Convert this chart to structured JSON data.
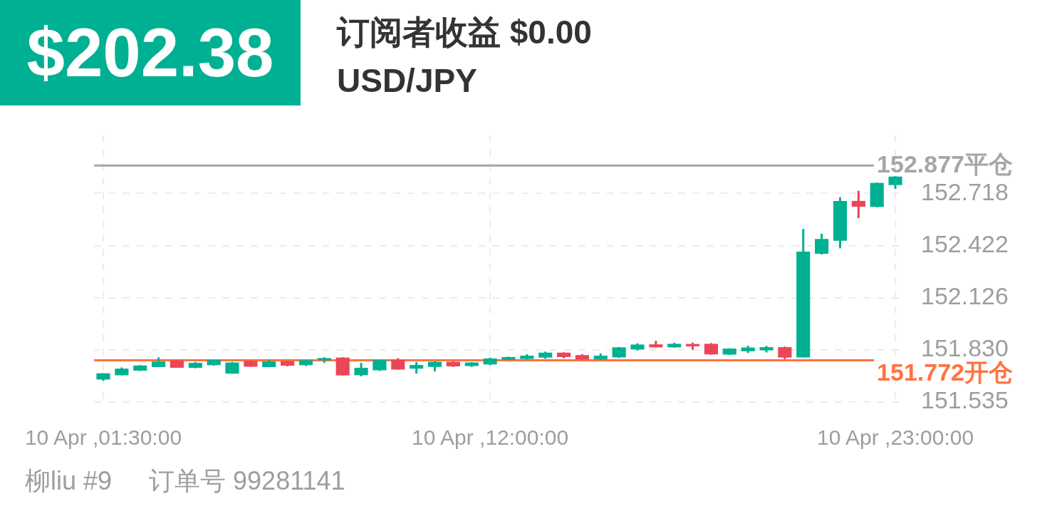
{
  "chart_data": {
    "type": "candlestick",
    "title": "订阅者收益 $0.00",
    "subtitle": "USD/JPY",
    "categories": [
      "10 Apr ,01:30:00",
      null,
      null,
      null,
      null,
      null,
      null,
      null,
      null,
      null,
      null,
      null,
      null,
      null,
      null,
      null,
      null,
      null,
      null,
      null,
      null,
      "10 Apr ,12:00:00",
      null,
      null,
      null,
      null,
      null,
      null,
      null,
      null,
      null,
      null,
      null,
      null,
      null,
      null,
      null,
      null,
      null,
      null,
      null,
      null,
      null,
      "10 Apr ,23:00:00"
    ],
    "ohlc": [
      [
        151.662,
        151.698,
        151.656,
        151.698
      ],
      [
        151.687,
        151.731,
        151.687,
        151.724
      ],
      [
        151.713,
        151.744,
        151.711,
        151.742
      ],
      [
        151.733,
        151.788,
        151.733,
        151.765
      ],
      [
        151.772,
        151.774,
        151.729,
        151.729
      ],
      [
        151.729,
        151.762,
        151.726,
        151.757
      ],
      [
        151.744,
        151.776,
        151.741,
        151.774
      ],
      [
        151.696,
        151.762,
        151.696,
        151.759
      ],
      [
        151.769,
        151.771,
        151.735,
        151.735
      ],
      [
        151.733,
        151.774,
        151.733,
        151.765
      ],
      [
        151.767,
        151.769,
        151.737,
        151.741
      ],
      [
        151.744,
        151.774,
        151.739,
        151.772
      ],
      [
        151.772,
        151.789,
        151.757,
        151.784
      ],
      [
        151.787,
        151.789,
        151.686,
        151.686
      ],
      [
        151.687,
        151.757,
        151.681,
        151.729
      ],
      [
        151.715,
        151.776,
        151.711,
        151.774
      ],
      [
        151.774,
        151.784,
        151.719,
        151.719
      ],
      [
        151.724,
        151.762,
        151.697,
        151.745
      ],
      [
        151.734,
        151.765,
        151.708,
        151.763
      ],
      [
        151.763,
        151.765,
        151.734,
        151.737
      ],
      [
        151.739,
        151.761,
        151.734,
        151.759
      ],
      [
        151.748,
        151.787,
        151.744,
        151.782
      ],
      [
        151.774,
        151.792,
        151.772,
        151.79
      ],
      [
        151.779,
        151.806,
        151.777,
        151.798
      ],
      [
        151.787,
        151.821,
        151.78,
        151.815
      ],
      [
        151.815,
        151.817,
        151.783,
        151.79
      ],
      [
        151.801,
        151.806,
        151.774,
        151.776
      ],
      [
        151.776,
        151.81,
        151.774,
        151.798
      ],
      [
        151.788,
        151.847,
        151.786,
        151.845
      ],
      [
        151.833,
        151.868,
        151.827,
        151.861
      ],
      [
        151.862,
        151.882,
        151.845,
        151.845
      ],
      [
        151.845,
        151.871,
        151.843,
        151.865
      ],
      [
        151.864,
        151.872,
        151.831,
        151.851
      ],
      [
        151.865,
        151.869,
        151.803,
        151.805
      ],
      [
        151.804,
        151.84,
        151.802,
        151.838
      ],
      [
        151.823,
        151.854,
        151.813,
        151.844
      ],
      [
        151.828,
        151.853,
        151.816,
        151.846
      ],
      [
        151.846,
        151.85,
        151.778,
        151.787
      ],
      [
        151.788,
        152.517,
        151.788,
        152.388
      ],
      [
        152.376,
        152.49,
        152.372,
        152.46
      ],
      [
        152.45,
        152.697,
        152.407,
        152.676
      ],
      [
        152.676,
        152.733,
        152.578,
        152.643
      ],
      [
        152.642,
        152.78,
        152.64,
        152.778
      ],
      [
        152.766,
        152.816,
        152.744,
        152.814
      ]
    ],
    "colors": [
      "#00b092",
      "#00b092",
      "#00b092",
      "#00b092",
      "#eb4656",
      "#00b092",
      "#00b092",
      "#00b092",
      "#eb4656",
      "#00b092",
      "#eb4656",
      "#00b092",
      "#00b092",
      "#eb4656",
      "#00b092",
      "#00b092",
      "#eb4656",
      "#00b092",
      "#00b092",
      "#eb4656",
      "#00b092",
      "#00b092",
      "#00b092",
      "#00b092",
      "#00b092",
      "#eb4656",
      "#eb4656",
      "#00b092",
      "#00b092",
      "#00b092",
      "#eb4656",
      "#00b092",
      "#eb4656",
      "#eb4656",
      "#00b092",
      "#00b092",
      "#00b092",
      "#eb4656",
      "#00b092",
      "#00b092",
      "#00b092",
      "#eb4656",
      "#00b092",
      "#00b092"
    ],
    "ylim": [
      151.535,
      153.05
    ],
    "yticks": [
      151.535,
      {
        "value": 151.83,
        "label": "151.830"
      },
      152.126,
      152.422,
      152.718
    ],
    "ref_lines": [
      {
        "axis": "y",
        "value": 152.877,
        "label": "152.877平仓",
        "color": "#a6a6a6"
      },
      {
        "axis": "y",
        "value": 151.772,
        "label": "151.772开仓",
        "color": "#ff7341"
      }
    ],
    "grid": true,
    "annotations": [
      "$202.38",
      "柳liu #9",
      "订单号 99281141"
    ]
  }
}
